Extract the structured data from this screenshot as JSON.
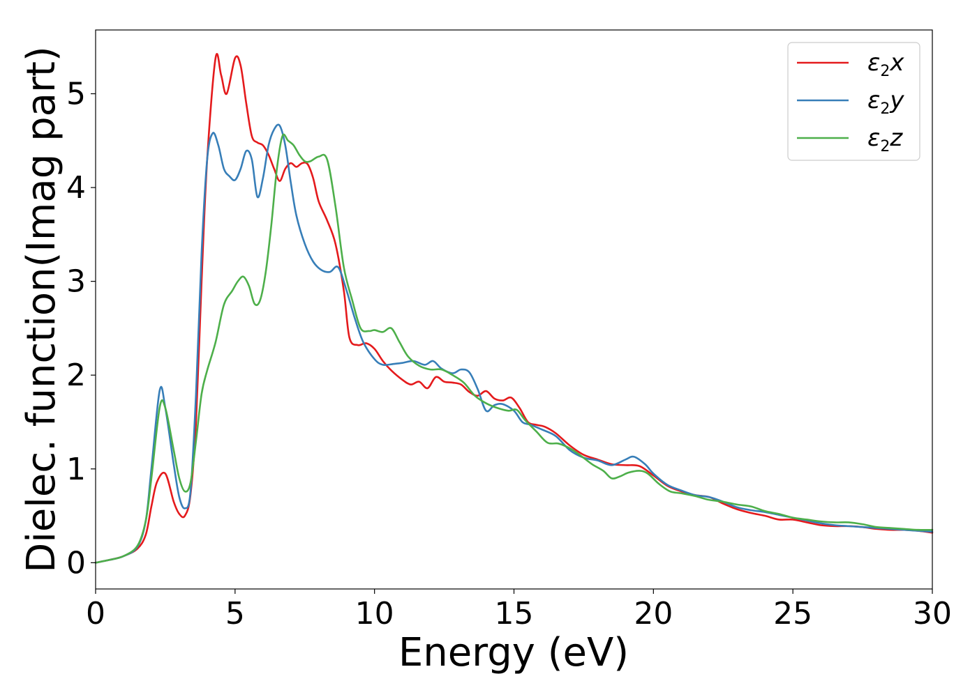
{
  "chart_data": {
    "type": "line",
    "title": "",
    "xlabel": "Energy (eV)",
    "ylabel": "Dielec. function(Imag part)",
    "xlim": [
      0,
      30
    ],
    "ylim": [
      -0.28,
      5.68
    ],
    "xticks": [
      0,
      5,
      10,
      15,
      20,
      25,
      30
    ],
    "yticks": [
      0,
      1,
      2,
      3,
      4,
      5
    ],
    "grid": false,
    "legend_position": "top-right",
    "series": [
      {
        "name": "ε2x",
        "symbol": "ε",
        "subscript": "2",
        "axis": "x",
        "color": "#e41a1c",
        "x": [
          0,
          0.5,
          1.0,
          1.5,
          1.8,
          2.0,
          2.2,
          2.5,
          2.8,
          3.0,
          3.2,
          3.4,
          3.6,
          3.8,
          4.0,
          4.3,
          4.5,
          4.7,
          5.0,
          5.2,
          5.4,
          5.6,
          5.8,
          6.0,
          6.2,
          6.4,
          6.6,
          6.8,
          7.0,
          7.2,
          7.4,
          7.6,
          7.8,
          8.0,
          8.3,
          8.6,
          8.9,
          9.1,
          9.4,
          9.7,
          10.0,
          10.3,
          10.6,
          11.0,
          11.3,
          11.6,
          11.9,
          12.2,
          12.5,
          12.8,
          13.1,
          13.4,
          13.7,
          14.0,
          14.3,
          14.6,
          14.9,
          15.2,
          15.5,
          15.8,
          16.1,
          16.5,
          17.0,
          17.5,
          18.0,
          18.5,
          19.0,
          19.5,
          20.0,
          20.5,
          21.0,
          21.5,
          22.0,
          22.5,
          23.0,
          23.5,
          24.0,
          24.5,
          25.0,
          25.5,
          26.0,
          26.5,
          27.0,
          27.5,
          28.0,
          28.5,
          29.0,
          29.5,
          30.0
        ],
        "values": [
          0.0,
          0.03,
          0.07,
          0.15,
          0.3,
          0.6,
          0.86,
          0.95,
          0.65,
          0.52,
          0.5,
          0.72,
          1.5,
          3.0,
          4.3,
          5.38,
          5.2,
          5.0,
          5.38,
          5.3,
          4.9,
          4.55,
          4.48,
          4.45,
          4.35,
          4.2,
          4.07,
          4.2,
          4.26,
          4.22,
          4.26,
          4.25,
          4.1,
          3.85,
          3.65,
          3.4,
          2.9,
          2.4,
          2.32,
          2.34,
          2.28,
          2.15,
          2.05,
          1.95,
          1.9,
          1.93,
          1.86,
          1.98,
          1.93,
          1.92,
          1.9,
          1.82,
          1.78,
          1.83,
          1.75,
          1.73,
          1.76,
          1.65,
          1.5,
          1.47,
          1.45,
          1.38,
          1.25,
          1.15,
          1.1,
          1.05,
          1.04,
          1.03,
          0.93,
          0.82,
          0.76,
          0.72,
          0.7,
          0.63,
          0.57,
          0.53,
          0.5,
          0.46,
          0.46,
          0.43,
          0.4,
          0.39,
          0.39,
          0.38,
          0.36,
          0.35,
          0.35,
          0.34,
          0.32
        ]
      },
      {
        "name": "ε2y",
        "symbol": "ε",
        "subscript": "2",
        "axis": "y",
        "color": "#377eb8",
        "x": [
          0,
          0.5,
          1.0,
          1.5,
          1.8,
          2.0,
          2.3,
          2.5,
          2.8,
          3.0,
          3.2,
          3.4,
          3.6,
          3.8,
          4.0,
          4.2,
          4.4,
          4.6,
          4.8,
          5.0,
          5.2,
          5.4,
          5.6,
          5.8,
          6.0,
          6.2,
          6.4,
          6.6,
          6.8,
          7.0,
          7.2,
          7.5,
          7.8,
          8.1,
          8.4,
          8.7,
          9.0,
          9.3,
          9.6,
          10.0,
          10.3,
          10.7,
          11.0,
          11.4,
          11.8,
          12.1,
          12.4,
          12.8,
          13.1,
          13.4,
          13.7,
          14.0,
          14.3,
          14.6,
          15.0,
          15.3,
          15.6,
          16.0,
          16.5,
          17.0,
          17.5,
          18.0,
          18.5,
          19.0,
          19.3,
          19.7,
          20.0,
          20.5,
          21.0,
          21.5,
          22.0,
          22.5,
          23.0,
          23.5,
          24.0,
          24.5,
          25.0,
          25.5,
          26.0,
          26.5,
          27.0,
          27.5,
          28.0,
          28.5,
          29.0,
          29.5,
          30.0
        ],
        "values": [
          0.0,
          0.03,
          0.07,
          0.17,
          0.45,
          1.0,
          1.84,
          1.65,
          1.05,
          0.7,
          0.58,
          0.75,
          1.8,
          3.3,
          4.3,
          4.58,
          4.45,
          4.2,
          4.12,
          4.08,
          4.2,
          4.39,
          4.3,
          3.9,
          4.1,
          4.45,
          4.62,
          4.66,
          4.45,
          4.05,
          3.7,
          3.4,
          3.21,
          3.12,
          3.1,
          3.15,
          2.9,
          2.6,
          2.35,
          2.17,
          2.11,
          2.12,
          2.13,
          2.15,
          2.11,
          2.15,
          2.07,
          2.02,
          2.06,
          2.03,
          1.85,
          1.62,
          1.68,
          1.69,
          1.62,
          1.5,
          1.47,
          1.42,
          1.35,
          1.2,
          1.12,
          1.09,
          1.04,
          1.1,
          1.13,
          1.05,
          0.95,
          0.83,
          0.77,
          0.72,
          0.7,
          0.65,
          0.59,
          0.56,
          0.54,
          0.51,
          0.48,
          0.45,
          0.42,
          0.4,
          0.39,
          0.38,
          0.37,
          0.36,
          0.35,
          0.34,
          0.33
        ]
      },
      {
        "name": "ε2z",
        "symbol": "ε",
        "subscript": "2",
        "axis": "z",
        "color": "#4daf4a",
        "x": [
          0,
          0.5,
          1.0,
          1.5,
          1.8,
          2.0,
          2.3,
          2.5,
          2.8,
          3.0,
          3.2,
          3.4,
          3.6,
          3.8,
          4.0,
          4.3,
          4.6,
          4.9,
          5.1,
          5.3,
          5.5,
          5.7,
          5.9,
          6.1,
          6.3,
          6.5,
          6.7,
          6.9,
          7.1,
          7.3,
          7.5,
          7.7,
          8.0,
          8.3,
          8.6,
          8.9,
          9.2,
          9.5,
          9.8,
          10.0,
          10.3,
          10.6,
          10.9,
          11.2,
          11.6,
          12.0,
          12.4,
          12.8,
          13.2,
          13.6,
          14.0,
          14.4,
          14.8,
          15.1,
          15.4,
          15.8,
          16.2,
          16.6,
          17.0,
          17.4,
          17.8,
          18.2,
          18.5,
          18.8,
          19.1,
          19.5,
          19.8,
          20.2,
          20.6,
          21.0,
          21.5,
          22.0,
          22.5,
          23.0,
          23.5,
          24.0,
          24.5,
          25.0,
          25.5,
          26.0,
          26.5,
          27.0,
          27.5,
          28.0,
          28.5,
          29.0,
          29.5,
          30.0
        ],
        "values": [
          0.0,
          0.03,
          0.07,
          0.18,
          0.45,
          0.9,
          1.66,
          1.65,
          1.2,
          0.9,
          0.76,
          0.85,
          1.3,
          1.8,
          2.05,
          2.35,
          2.75,
          2.9,
          3.0,
          3.05,
          2.95,
          2.76,
          2.8,
          3.1,
          3.6,
          4.2,
          4.55,
          4.5,
          4.45,
          4.35,
          4.28,
          4.28,
          4.33,
          4.3,
          3.8,
          3.15,
          2.8,
          2.5,
          2.47,
          2.48,
          2.46,
          2.5,
          2.35,
          2.2,
          2.1,
          2.06,
          2.06,
          2.0,
          1.92,
          1.78,
          1.7,
          1.65,
          1.62,
          1.63,
          1.52,
          1.4,
          1.28,
          1.27,
          1.22,
          1.14,
          1.05,
          0.98,
          0.9,
          0.92,
          0.96,
          0.98,
          0.95,
          0.84,
          0.76,
          0.74,
          0.71,
          0.67,
          0.65,
          0.62,
          0.6,
          0.55,
          0.52,
          0.48,
          0.46,
          0.44,
          0.43,
          0.43,
          0.41,
          0.38,
          0.37,
          0.36,
          0.35,
          0.35
        ]
      }
    ]
  }
}
